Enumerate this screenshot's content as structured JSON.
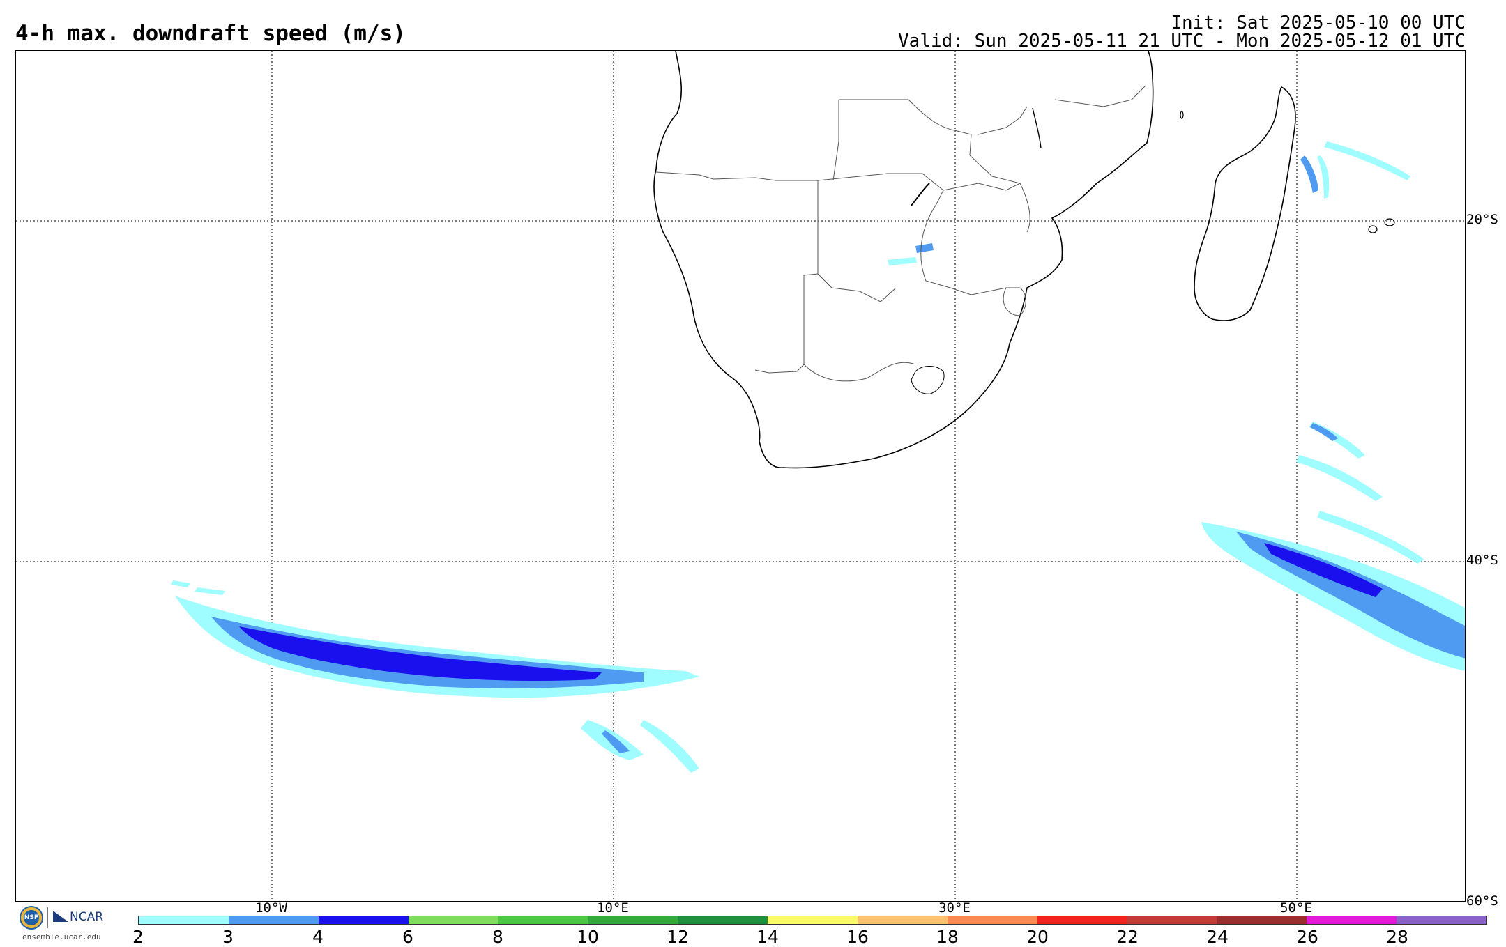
{
  "header": {
    "title": "4-h max. downdraft speed (m/s)",
    "init": "Init: Sat 2025-05-10 00 UTC",
    "valid": "Valid: Sun 2025-05-11 21 UTC - Mon 2025-05-12 01 UTC"
  },
  "map": {
    "lat_labels": [
      "20°S",
      "40°S",
      "60°S"
    ],
    "lon_labels": [
      "10°W",
      "10°E",
      "30°E",
      "50°E"
    ],
    "gridlines": "dotted"
  },
  "colorbar": {
    "ticks": [
      "2",
      "3",
      "4",
      "6",
      "8",
      "10",
      "12",
      "14",
      "16",
      "18",
      "20",
      "22",
      "24",
      "26",
      "28"
    ],
    "colors": [
      "#9ffcff",
      "#4f9bf2",
      "#1a10ee",
      "#7fdc5c",
      "#4cc744",
      "#34aa3c",
      "#1e8f3c",
      "#fbfb6c",
      "#fbc26e",
      "#f88a52",
      "#f2231f",
      "#c23b39",
      "#9a2e2e",
      "#e31ad8",
      "#8a62c8"
    ]
  },
  "logos": {
    "nsf": "NSF",
    "ncar": "NCAR",
    "site": "ensemble.ucar.edu"
  }
}
